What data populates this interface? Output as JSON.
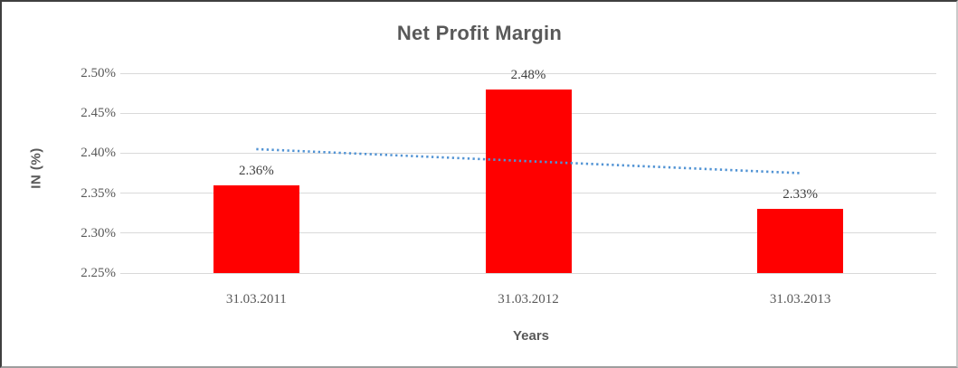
{
  "chart_data": {
    "type": "bar",
    "title": "Net Profit Margin",
    "xlabel": "Years",
    "ylabel": "IN (%)",
    "categories": [
      "31.03.2011",
      "31.03.2012",
      "31.03.2013"
    ],
    "values": [
      2.36,
      2.48,
      2.33
    ],
    "data_labels": [
      "2.36%",
      "2.48%",
      "2.33%"
    ],
    "ylim": [
      2.25,
      2.5
    ],
    "yticks": [
      {
        "value": 2.5,
        "label": "2.50%"
      },
      {
        "value": 2.45,
        "label": "2.45%"
      },
      {
        "value": 2.4,
        "label": "2.40%"
      },
      {
        "value": 2.35,
        "label": "2.35%"
      },
      {
        "value": 2.3,
        "label": "2.30%"
      },
      {
        "value": 2.25,
        "label": "2.25%"
      }
    ],
    "grid": true,
    "legend": "none",
    "trendline": {
      "type": "linear",
      "style": "dotted",
      "values": [
        2.405,
        2.39,
        2.375
      ]
    },
    "colors": {
      "bar": "#ff0000",
      "trendline": "#5193d4",
      "gridline": "#d9d9d9",
      "text": "#595959",
      "data_label": "#404040"
    }
  }
}
